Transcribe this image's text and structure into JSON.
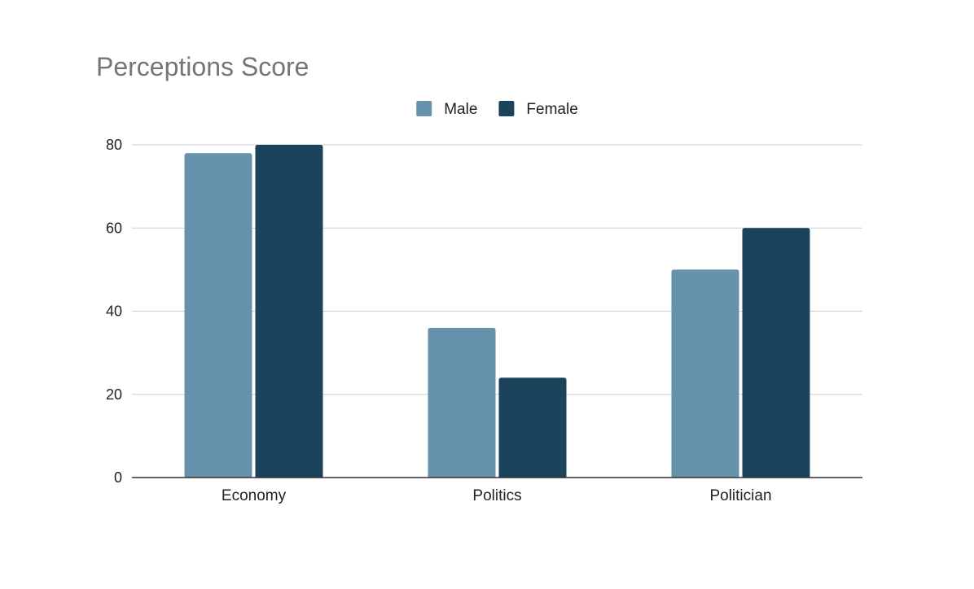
{
  "chart_data": {
    "type": "bar",
    "title": "Perceptions Score",
    "xlabel": "",
    "ylabel": "",
    "categories": [
      "Economy",
      "Politics",
      "Politician"
    ],
    "series": [
      {
        "name": "Male",
        "values": [
          78,
          36,
          50
        ],
        "color": "#6792ab"
      },
      {
        "name": "Female",
        "values": [
          80,
          24,
          60
        ],
        "color": "#1b435b"
      }
    ],
    "ylim": [
      0,
      80
    ],
    "yticks": [
      0,
      20,
      40,
      60,
      80
    ],
    "grid": true,
    "legend_position": "top-center"
  }
}
